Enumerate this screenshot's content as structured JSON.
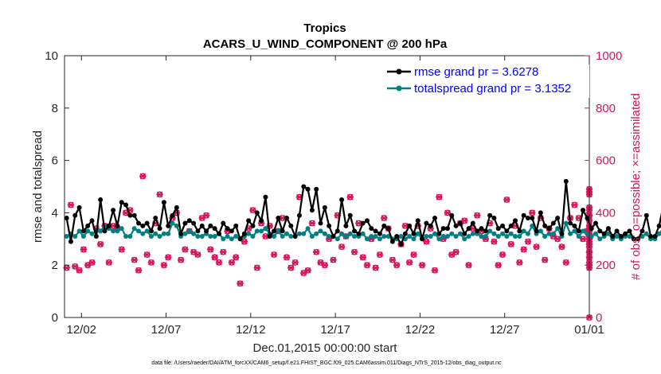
{
  "chart_data": {
    "type": "line",
    "title": "Tropics",
    "subtitle": "ACARS_U_WIND_COMPONENT @ 200 hPa",
    "xlabel": "Dec.01,2015 00:00:00 start",
    "ylabel": "rmse and totalspread",
    "y2label": "# of obs: o=possible; ×=assimilated",
    "ylim": [
      0,
      10
    ],
    "y2lim": [
      0,
      1000
    ],
    "xlim": [
      0,
      31
    ],
    "yticks": [
      "0",
      "2",
      "4",
      "6",
      "8",
      "10"
    ],
    "y2ticks": [
      "0",
      "200",
      "400",
      "600",
      "800",
      "1000"
    ],
    "xticks": [
      {
        "x": 1,
        "label": "12/02"
      },
      {
        "x": 6,
        "label": "12/07"
      },
      {
        "x": 11,
        "label": "12/12"
      },
      {
        "x": 16,
        "label": "12/17"
      },
      {
        "x": 21,
        "label": "12/22"
      },
      {
        "x": 26,
        "label": "12/27"
      },
      {
        "x": 31,
        "label": "01/01"
      }
    ],
    "legend": [
      "rmse grand pr = 3.6278",
      "totalspread grand pr = 3.1352"
    ],
    "legend_position": "top-right",
    "colors": {
      "rmse": "#000000",
      "spread": "#008080",
      "obs": "#d6135c"
    },
    "series": [
      {
        "name": "rmse",
        "values": [
          3.8,
          2.9,
          3.9,
          4.2,
          3.3,
          3.5,
          3.7,
          3.1,
          4.5,
          3.3,
          3.5,
          4.1,
          3.5,
          4.4,
          4.3,
          3.9,
          3.9,
          3.6,
          3.5,
          3.6,
          3.3,
          3.8,
          3.4,
          4.4,
          3.5,
          3.9,
          4.2,
          3.2,
          3.6,
          3.7,
          3.6,
          3.3,
          3.5,
          3.3,
          3.5,
          3.4,
          3.2,
          3.6,
          3.4,
          3.3,
          3.5,
          3.0,
          3.2,
          3.7,
          3.5,
          4.0,
          3.7,
          4.6,
          3.1,
          3.3,
          3.8,
          3.3,
          3.8,
          3.5,
          3.1,
          3.9,
          5.0,
          4.9,
          4.1,
          4.9,
          3.6,
          4.2,
          3.5,
          3.1,
          3.3,
          4.5,
          3.5,
          3.9,
          3.3,
          3.2,
          3.6,
          3.7,
          3.4,
          3.3,
          3.2,
          3.5,
          3.4,
          2.9,
          3.1,
          2.8,
          3.2,
          3.5,
          3.2,
          3.7,
          3.0,
          3.6,
          3.5,
          3.8,
          3.2,
          3.4,
          3.4,
          3.9,
          3.5,
          3.6,
          3.2,
          3.4,
          3.6,
          3.3,
          3.4,
          3.3,
          3.9,
          3.8,
          3.4,
          3.5,
          3.3,
          3.5,
          3.7,
          3.3,
          3.9,
          3.8,
          3.8,
          3.3,
          4.0,
          3.5,
          3.4,
          3.6,
          3.8,
          3.2,
          5.2,
          3.6,
          3.5,
          3.3,
          4.1,
          3.8,
          3.4,
          3.6,
          3.3,
          3.2,
          3.4,
          3.1,
          3.3,
          3.1,
          3.2,
          3.3,
          3.0,
          3.0,
          3.3,
          3.9,
          3.1,
          3.1,
          3.5,
          4.3,
          3.7,
          3.2,
          3.4,
          3.0,
          4.6,
          3.2,
          3.5,
          3.8,
          3.1
        ]
      },
      {
        "name": "totalspread",
        "values": [
          3.1,
          3.2,
          3.1,
          3.3,
          3.1,
          3.3,
          3.2,
          3.3,
          3.3,
          3.5,
          3.4,
          3.3,
          3.3,
          3.4,
          3.1,
          3.1,
          3.4,
          3.3,
          3.2,
          3.3,
          3.1,
          3.2,
          3.1,
          3.2,
          3.2,
          3.6,
          3.5,
          3.1,
          3.2,
          3.3,
          3.2,
          3.1,
          3.1,
          3.2,
          3.1,
          3.1,
          3.2,
          3.0,
          3.1,
          3.0,
          3.1,
          3.0,
          3.1,
          3.2,
          3.1,
          3.3,
          3.3,
          3.4,
          3.2,
          3.1,
          3.3,
          3.1,
          3.2,
          3.1,
          3.1,
          3.2,
          3.2,
          3.4,
          3.1,
          3.2,
          3.3,
          3.2,
          3.1,
          3.1,
          3.0,
          3.2,
          3.1,
          3.2,
          3.1,
          3.1,
          3.2,
          3.0,
          3.1,
          3.1,
          3.0,
          3.1,
          3.1,
          3.0,
          3.0,
          3.1,
          3.0,
          3.1,
          3.0,
          3.2,
          3.0,
          3.1,
          3.1,
          3.2,
          3.0,
          3.1,
          3.1,
          3.2,
          3.1,
          3.2,
          3.0,
          3.1,
          3.2,
          3.2,
          3.1,
          3.1,
          3.3,
          3.2,
          3.1,
          3.2,
          3.1,
          3.2,
          3.1,
          3.1,
          3.3,
          3.2,
          3.5,
          3.2,
          3.3,
          3.1,
          3.2,
          3.2,
          3.4,
          3.1,
          3.6,
          3.2,
          3.3,
          3.1,
          3.3,
          3.2,
          3.1,
          3.2,
          3.0,
          3.1,
          3.2,
          3.0,
          3.1,
          3.0,
          3.1,
          3.1,
          3.0,
          3.0,
          3.1,
          3.2,
          3.0,
          3.0,
          3.2,
          3.4,
          3.3,
          3.1,
          3.2,
          3.0,
          3.4,
          3.1,
          3.2,
          3.3,
          3.0
        ]
      },
      {
        "name": "obs_possible",
        "axis": "right",
        "values": [
          190,
          430,
          195,
          180,
          260,
          200,
          210,
          340,
          280,
          350,
          210,
          350,
          340,
          260,
          400,
          410,
          220,
          180,
          540,
          240,
          210,
          360,
          470,
          200,
          230,
          380,
          400,
          220,
          260,
          330,
          250,
          240,
          380,
          390,
          260,
          230,
          210,
          250,
          330,
          210,
          230,
          130,
          290,
          340,
          410,
          190,
          360,
          310,
          350,
          240,
          330,
          380,
          230,
          190,
          210,
          460,
          170,
          180,
          360,
          250,
          210,
          200,
          300,
          220,
          390,
          270,
          310,
          460,
          250,
          360,
          230,
          200,
          300,
          190,
          240,
          380,
          340,
          220,
          200,
          280,
          350,
          210,
          240,
          350,
          200,
          290,
          340,
          180,
          460,
          300,
          400,
          240,
          250,
          360,
          370,
          200,
          340,
          390,
          330,
          300,
          360,
          290,
          200,
          240,
          450,
          280,
          350,
          210,
          260,
          290,
          400,
          270,
          380,
          220,
          340,
          310,
          300,
          270,
          210,
          380,
          430,
          380,
          300,
          330,
          230,
          280,
          310,
          250,
          210,
          390,
          300,
          350,
          480,
          290,
          370,
          420,
          310,
          230,
          470,
          200,
          250,
          390,
          280,
          330,
          490,
          190,
          340,
          320,
          270,
          390,
          250,
          410,
          0
        ]
      },
      {
        "name": "obs_assimilated",
        "axis": "right",
        "values": [
          190,
          430,
          195,
          180,
          260,
          200,
          210,
          340,
          280,
          350,
          210,
          350,
          340,
          260,
          400,
          410,
          220,
          180,
          540,
          240,
          210,
          360,
          470,
          200,
          230,
          380,
          400,
          220,
          260,
          330,
          250,
          240,
          380,
          390,
          260,
          230,
          210,
          250,
          330,
          210,
          230,
          130,
          290,
          340,
          410,
          190,
          360,
          310,
          350,
          240,
          330,
          380,
          230,
          190,
          210,
          460,
          170,
          180,
          360,
          250,
          210,
          200,
          300,
          220,
          390,
          270,
          310,
          460,
          250,
          360,
          230,
          200,
          300,
          190,
          240,
          380,
          340,
          220,
          200,
          280,
          350,
          210,
          240,
          350,
          200,
          290,
          340,
          180,
          460,
          300,
          400,
          240,
          250,
          360,
          370,
          200,
          340,
          390,
          330,
          300,
          360,
          290,
          200,
          240,
          450,
          280,
          350,
          210,
          260,
          290,
          400,
          270,
          380,
          220,
          340,
          310,
          300,
          270,
          210,
          380,
          430,
          380,
          300,
          330,
          230,
          280,
          310,
          250,
          210,
          390,
          300,
          350,
          480,
          290,
          370,
          420,
          310,
          230,
          470,
          200,
          250,
          390,
          280,
          330,
          490,
          190,
          340,
          320,
          270,
          390,
          250,
          410,
          0
        ]
      }
    ]
  },
  "footer": "data file: /Users/raeder/DAI/ATM_forcXX/CAM6_setup/f.e21.FHIST_BGC.f09_025.CAM6assim.011/Diags_NTrS_2015-12/obs_diag_output.nc"
}
